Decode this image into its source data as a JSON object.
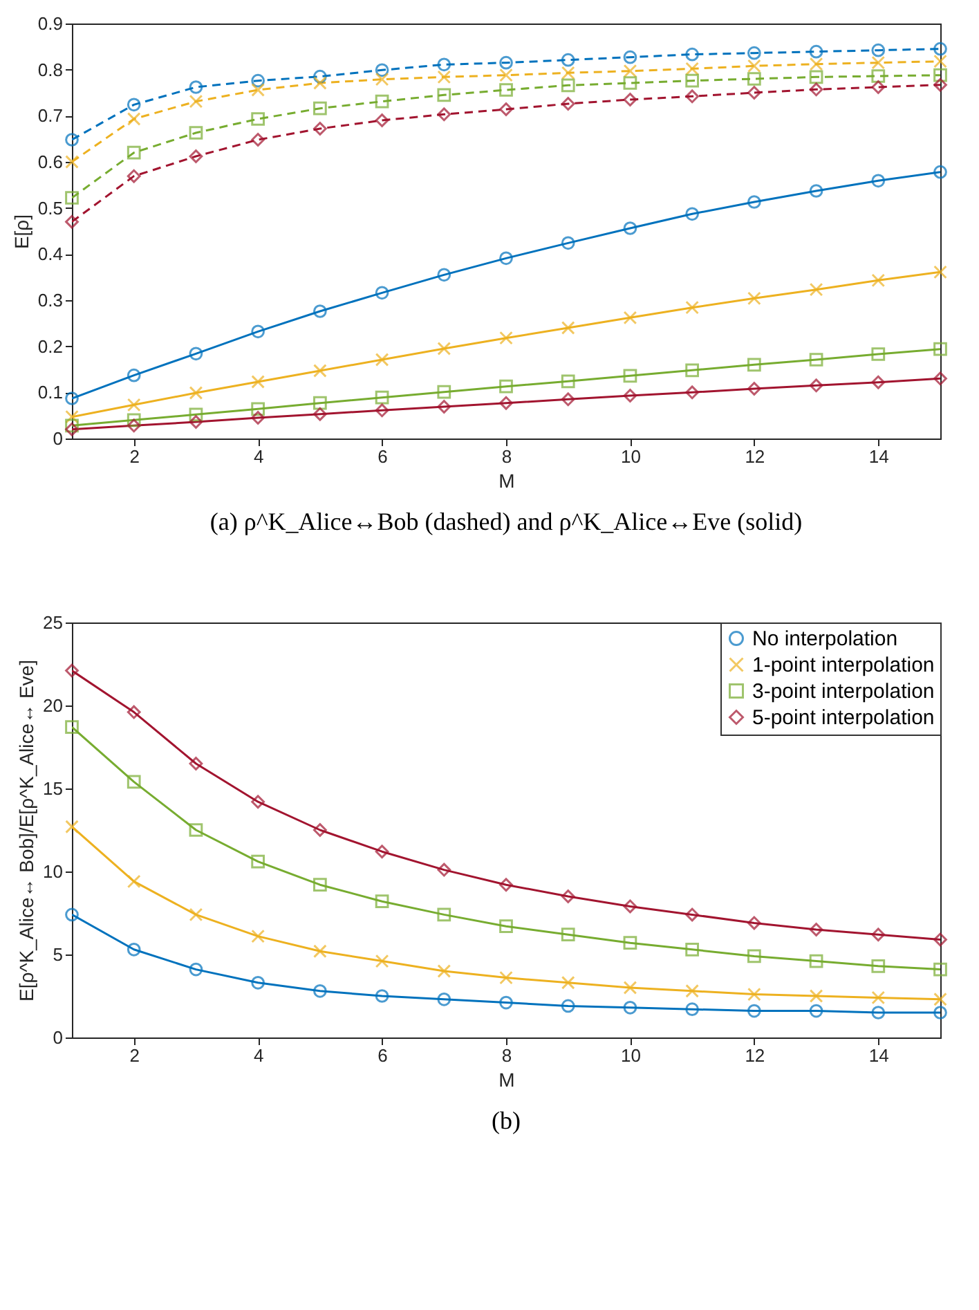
{
  "chart_data": [
    {
      "type": "line",
      "xlabel": "M",
      "ylabel": "E[ρ]",
      "annotations": [
        "(a) ρ^K_Alice↔Bob (dashed) and ρ^K_Alice↔Eve (solid)"
      ],
      "x": [
        1,
        2,
        3,
        4,
        5,
        6,
        7,
        8,
        9,
        10,
        11,
        12,
        13,
        14,
        15
      ],
      "xlim": [
        1,
        15
      ],
      "xticks": [
        2,
        4,
        6,
        8,
        10,
        12,
        14
      ],
      "ylim": [
        0,
        0.9
      ],
      "yticks": [
        0,
        0.1,
        0.2,
        0.3,
        0.4,
        0.5,
        0.6,
        0.7,
        0.8,
        0.9
      ],
      "grid": false,
      "legend": false,
      "series": [
        {
          "color": "#0072bd",
          "marker": "circle",
          "line_style": "dashed",
          "values": [
            0.648,
            0.724,
            0.762,
            0.776,
            0.785,
            0.799,
            0.811,
            0.815,
            0.821,
            0.827,
            0.833,
            0.836,
            0.839,
            0.842,
            0.845
          ]
        },
        {
          "color": "#edb120",
          "marker": "cross",
          "line_style": "dashed",
          "values": [
            0.6,
            0.693,
            0.731,
            0.756,
            0.771,
            0.779,
            0.784,
            0.788,
            0.793,
            0.797,
            0.802,
            0.808,
            0.812,
            0.815,
            0.818
          ]
        },
        {
          "color": "#77ac30",
          "marker": "square",
          "line_style": "dashed",
          "values": [
            0.522,
            0.62,
            0.663,
            0.693,
            0.716,
            0.731,
            0.745,
            0.756,
            0.766,
            0.771,
            0.776,
            0.78,
            0.784,
            0.786,
            0.788
          ]
        },
        {
          "color": "#a2142f",
          "marker": "diamond",
          "line_style": "dashed",
          "values": [
            0.47,
            0.569,
            0.612,
            0.648,
            0.672,
            0.69,
            0.703,
            0.714,
            0.726,
            0.735,
            0.742,
            0.75,
            0.757,
            0.762,
            0.767
          ]
        },
        {
          "color": "#0072bd",
          "marker": "circle",
          "line_style": "solid",
          "values": [
            0.087,
            0.137,
            0.184,
            0.232,
            0.276,
            0.316,
            0.355,
            0.391,
            0.424,
            0.456,
            0.487,
            0.513,
            0.537,
            0.559,
            0.578
          ]
        },
        {
          "color": "#edb120",
          "marker": "cross",
          "line_style": "solid",
          "values": [
            0.047,
            0.073,
            0.099,
            0.123,
            0.147,
            0.171,
            0.195,
            0.218,
            0.24,
            0.262,
            0.284,
            0.304,
            0.323,
            0.343,
            0.361
          ]
        },
        {
          "color": "#77ac30",
          "marker": "square",
          "line_style": "solid",
          "values": [
            0.028,
            0.04,
            0.052,
            0.064,
            0.077,
            0.089,
            0.101,
            0.113,
            0.124,
            0.136,
            0.148,
            0.16,
            0.171,
            0.183,
            0.194
          ]
        },
        {
          "color": "#a2142f",
          "marker": "diamond",
          "line_style": "solid",
          "values": [
            0.02,
            0.028,
            0.036,
            0.045,
            0.053,
            0.061,
            0.069,
            0.077,
            0.085,
            0.093,
            0.1,
            0.108,
            0.115,
            0.122,
            0.13
          ]
        }
      ]
    },
    {
      "type": "line",
      "xlabel": "M",
      "ylabel": "E[ρ^K_Alice↔ Bob]/E[ρ^K_Alice↔ Eve]",
      "annotations": [
        "(b)"
      ],
      "x": [
        1,
        2,
        3,
        4,
        5,
        6,
        7,
        8,
        9,
        10,
        11,
        12,
        13,
        14,
        15
      ],
      "xlim": [
        1,
        15
      ],
      "xticks": [
        2,
        4,
        6,
        8,
        10,
        12,
        14
      ],
      "ylim": [
        0,
        25
      ],
      "yticks": [
        0,
        5,
        10,
        15,
        20,
        25
      ],
      "grid": false,
      "legend": "top right",
      "line_style": "solid",
      "series": [
        {
          "name": "No interpolation",
          "color": "#0072bd",
          "marker": "circle",
          "values": [
            7.4,
            5.3,
            4.1,
            3.3,
            2.8,
            2.5,
            2.3,
            2.1,
            1.9,
            1.8,
            1.7,
            1.6,
            1.6,
            1.5,
            1.5
          ]
        },
        {
          "name": "1-point interpolation",
          "color": "#edb120",
          "marker": "cross",
          "values": [
            12.7,
            9.4,
            7.4,
            6.1,
            5.2,
            4.6,
            4.0,
            3.6,
            3.3,
            3.0,
            2.8,
            2.6,
            2.5,
            2.4,
            2.3
          ]
        },
        {
          "name": "3-point interpolation",
          "color": "#77ac30",
          "marker": "square",
          "values": [
            18.7,
            15.4,
            12.5,
            10.6,
            9.2,
            8.2,
            7.4,
            6.7,
            6.2,
            5.7,
            5.3,
            4.9,
            4.6,
            4.3,
            4.1
          ]
        },
        {
          "name": "5-point interpolation",
          "color": "#a2142f",
          "marker": "diamond",
          "values": [
            22.1,
            19.6,
            16.5,
            14.2,
            12.5,
            11.2,
            10.1,
            9.2,
            8.5,
            7.9,
            7.4,
            6.9,
            6.5,
            6.2,
            5.9
          ]
        }
      ]
    }
  ]
}
